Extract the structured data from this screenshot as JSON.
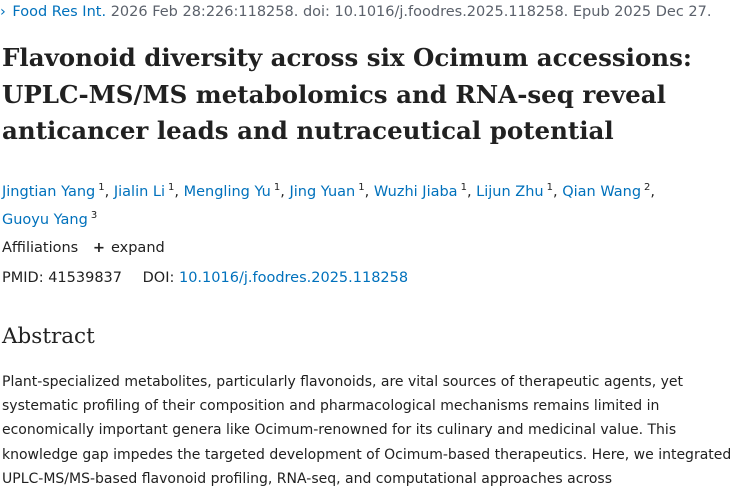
{
  "citation": {
    "journal": "Food Res Int.",
    "details": "2026 Feb 28:226:118258. doi: 10.1016/j.foodres.2025.118258. Epub 2025 Dec 27."
  },
  "title": "Flavonoid diversity across six Ocimum accessions: UPLC-MS/MS metabolomics and RNA-seq reveal anticancer leads and nutraceutical potential",
  "authors": [
    {
      "name": "Jingtian Yang",
      "aff": "1"
    },
    {
      "name": "Jialin Li",
      "aff": "1"
    },
    {
      "name": "Mengling Yu",
      "aff": "1"
    },
    {
      "name": "Jing Yuan",
      "aff": "1"
    },
    {
      "name": "Wuzhi Jiaba",
      "aff": "1"
    },
    {
      "name": "Lijun Zhu",
      "aff": "1"
    },
    {
      "name": "Qian Wang",
      "aff": "2"
    },
    {
      "name": "Guoyu Yang",
      "aff": "3"
    }
  ],
  "affiliations": {
    "label": "Affiliations",
    "expand_label": "expand"
  },
  "ids": {
    "pmid_label": "PMID:",
    "pmid": "41539837",
    "doi_label": "DOI:",
    "doi": "10.1016/j.foodres.2025.118258"
  },
  "abstract": {
    "heading": "Abstract",
    "text": "Plant-specialized metabolites, particularly flavonoids, are vital sources of therapeutic agents, yet systematic profiling of their composition and pharmacological mechanisms remains limited in economically important genera like Ocimum-renowned for its culinary and medicinal value. This knowledge gap impedes the targeted development of Ocimum-based therapeutics. Here, we integrated UPLC-MS/MS-based flavonoid profiling, RNA-seq, and computational approaches across"
  },
  "colors": {
    "link": "#0071bc",
    "text": "#212121",
    "muted": "#5b616b"
  }
}
